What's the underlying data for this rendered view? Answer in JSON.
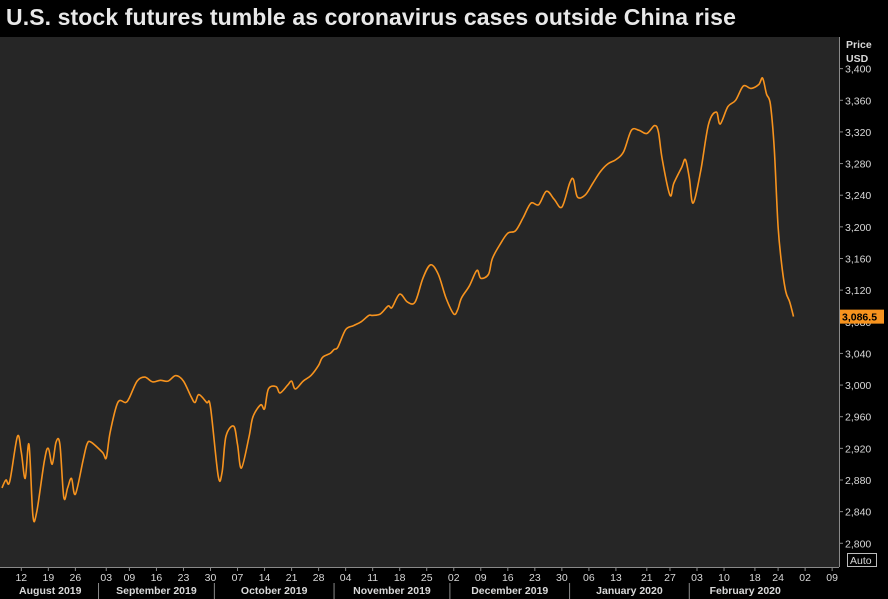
{
  "title": "U.S. stock futures tumble as coronavirus cases outside China rise",
  "colors": {
    "background": "#000000",
    "plot_background": "#262626",
    "line": "#f7931e",
    "last_value_badge": "#f7931e",
    "text": "#d8d8d8"
  },
  "y_axis": {
    "label_line1": "Price",
    "label_line2": "USD",
    "auto_button": "Auto"
  },
  "last_value": {
    "label": "3,086.5",
    "value": 3086.5
  },
  "chart_data": {
    "type": "line",
    "title": "U.S. stock futures tumble as coronavirus cases outside China rise",
    "ylabel": "Price USD",
    "ylim": [
      2770,
      3440
    ],
    "y_ticks": [
      2800,
      2840,
      2880,
      2920,
      2960,
      3000,
      3040,
      3080,
      3120,
      3160,
      3200,
      3240,
      3280,
      3320,
      3360,
      3400
    ],
    "y_tick_labels": [
      "2,800",
      "2,840",
      "2,880",
      "2,920",
      "2,960",
      "3,000",
      "3,040",
      "3,080",
      "3,120",
      "3,160",
      "3,200",
      "3,240",
      "3,280",
      "3,320",
      "3,360",
      "3,400"
    ],
    "x_range": [
      "2019-08-07",
      "2020-03-10"
    ],
    "x_ticks": [
      {
        "date": "2019-08-12",
        "label": "12"
      },
      {
        "date": "2019-08-19",
        "label": "19"
      },
      {
        "date": "2019-08-26",
        "label": "26"
      },
      {
        "date": "2019-09-03",
        "label": "03"
      },
      {
        "date": "2019-09-09",
        "label": "09"
      },
      {
        "date": "2019-09-16",
        "label": "16"
      },
      {
        "date": "2019-09-23",
        "label": "23"
      },
      {
        "date": "2019-09-30",
        "label": "30"
      },
      {
        "date": "2019-10-07",
        "label": "07"
      },
      {
        "date": "2019-10-14",
        "label": "14"
      },
      {
        "date": "2019-10-21",
        "label": "21"
      },
      {
        "date": "2019-10-28",
        "label": "28"
      },
      {
        "date": "2019-11-04",
        "label": "04"
      },
      {
        "date": "2019-11-11",
        "label": "11"
      },
      {
        "date": "2019-11-18",
        "label": "18"
      },
      {
        "date": "2019-11-25",
        "label": "25"
      },
      {
        "date": "2019-12-02",
        "label": "02"
      },
      {
        "date": "2019-12-09",
        "label": "09"
      },
      {
        "date": "2019-12-16",
        "label": "16"
      },
      {
        "date": "2019-12-23",
        "label": "23"
      },
      {
        "date": "2019-12-30",
        "label": "30"
      },
      {
        "date": "2020-01-06",
        "label": "06"
      },
      {
        "date": "2020-01-13",
        "label": "13"
      },
      {
        "date": "2020-01-21",
        "label": "21"
      },
      {
        "date": "2020-01-27",
        "label": "27"
      },
      {
        "date": "2020-02-03",
        "label": "03"
      },
      {
        "date": "2020-02-10",
        "label": "10"
      },
      {
        "date": "2020-02-18",
        "label": "18"
      },
      {
        "date": "2020-02-24",
        "label": "24"
      },
      {
        "date": "2020-03-02",
        "label": "02"
      },
      {
        "date": "2020-03-09",
        "label": "09"
      }
    ],
    "months": [
      {
        "label": "August 2019",
        "start": "2019-08-07",
        "end": "2019-09-01"
      },
      {
        "label": "September 2019",
        "start": "2019-09-01",
        "end": "2019-10-01"
      },
      {
        "label": "October 2019",
        "start": "2019-10-01",
        "end": "2019-11-01"
      },
      {
        "label": "November 2019",
        "start": "2019-11-01",
        "end": "2019-12-01"
      },
      {
        "label": "December 2019",
        "start": "2019-12-01",
        "end": "2020-01-01"
      },
      {
        "label": "January 2020",
        "start": "2020-01-01",
        "end": "2020-02-01"
      },
      {
        "label": "February 2020",
        "start": "2020-02-01",
        "end": "2020-03-01"
      }
    ],
    "series": [
      {
        "points": [
          [
            "2019-08-07",
            2870
          ],
          [
            "2019-08-08",
            2880
          ],
          [
            "2019-08-09",
            2878
          ],
          [
            "2019-08-11",
            2935
          ],
          [
            "2019-08-12",
            2915
          ],
          [
            "2019-08-13",
            2882
          ],
          [
            "2019-08-14",
            2925
          ],
          [
            "2019-08-15",
            2835
          ],
          [
            "2019-08-16",
            2840
          ],
          [
            "2019-08-18",
            2905
          ],
          [
            "2019-08-19",
            2920
          ],
          [
            "2019-08-20",
            2900
          ],
          [
            "2019-08-21",
            2928
          ],
          [
            "2019-08-22",
            2925
          ],
          [
            "2019-08-23",
            2858
          ],
          [
            "2019-08-24",
            2870
          ],
          [
            "2019-08-25",
            2882
          ],
          [
            "2019-08-26",
            2862
          ],
          [
            "2019-08-28",
            2905
          ],
          [
            "2019-08-29",
            2925
          ],
          [
            "2019-08-30",
            2928
          ],
          [
            "2019-09-02",
            2915
          ],
          [
            "2019-09-03",
            2908
          ],
          [
            "2019-09-04",
            2940
          ],
          [
            "2019-09-06",
            2978
          ],
          [
            "2019-09-08",
            2978
          ],
          [
            "2019-09-09",
            2984
          ],
          [
            "2019-09-11",
            3005
          ],
          [
            "2019-09-13",
            3010
          ],
          [
            "2019-09-15",
            3004
          ],
          [
            "2019-09-17",
            3006
          ],
          [
            "2019-09-19",
            3005
          ],
          [
            "2019-09-21",
            3012
          ],
          [
            "2019-09-23",
            3005
          ],
          [
            "2019-09-25",
            2985
          ],
          [
            "2019-09-26",
            2978
          ],
          [
            "2019-09-27",
            2988
          ],
          [
            "2019-09-29",
            2978
          ],
          [
            "2019-09-30",
            2972
          ],
          [
            "2019-10-02",
            2885
          ],
          [
            "2019-10-03",
            2890
          ],
          [
            "2019-10-04",
            2935
          ],
          [
            "2019-10-06",
            2948
          ],
          [
            "2019-10-07",
            2925
          ],
          [
            "2019-10-08",
            2895
          ],
          [
            "2019-10-10",
            2935
          ],
          [
            "2019-10-11",
            2960
          ],
          [
            "2019-10-13",
            2975
          ],
          [
            "2019-10-14",
            2970
          ],
          [
            "2019-10-15",
            2995
          ],
          [
            "2019-10-17",
            2998
          ],
          [
            "2019-10-18",
            2990
          ],
          [
            "2019-10-20",
            3000
          ],
          [
            "2019-10-21",
            3005
          ],
          [
            "2019-10-22",
            2995
          ],
          [
            "2019-10-24",
            3005
          ],
          [
            "2019-10-26",
            3012
          ],
          [
            "2019-10-28",
            3025
          ],
          [
            "2019-10-29",
            3035
          ],
          [
            "2019-10-31",
            3040
          ],
          [
            "2019-11-01",
            3045
          ],
          [
            "2019-11-02",
            3048
          ],
          [
            "2019-11-04",
            3070
          ],
          [
            "2019-11-06",
            3075
          ],
          [
            "2019-11-08",
            3080
          ],
          [
            "2019-11-10",
            3088
          ],
          [
            "2019-11-11",
            3088
          ],
          [
            "2019-11-13",
            3090
          ],
          [
            "2019-11-15",
            3100
          ],
          [
            "2019-11-16",
            3098
          ],
          [
            "2019-11-18",
            3115
          ],
          [
            "2019-11-20",
            3105
          ],
          [
            "2019-11-22",
            3105
          ],
          [
            "2019-11-24",
            3135
          ],
          [
            "2019-11-26",
            3152
          ],
          [
            "2019-11-28",
            3140
          ],
          [
            "2019-11-30",
            3110
          ],
          [
            "2019-12-02",
            3090
          ],
          [
            "2019-12-03",
            3095
          ],
          [
            "2019-12-04",
            3110
          ],
          [
            "2019-12-06",
            3125
          ],
          [
            "2019-12-08",
            3145
          ],
          [
            "2019-12-09",
            3135
          ],
          [
            "2019-12-11",
            3140
          ],
          [
            "2019-12-12",
            3160
          ],
          [
            "2019-12-14",
            3178
          ],
          [
            "2019-12-16",
            3192
          ],
          [
            "2019-12-18",
            3195
          ],
          [
            "2019-12-20",
            3212
          ],
          [
            "2019-12-22",
            3230
          ],
          [
            "2019-12-24",
            3228
          ],
          [
            "2019-12-26",
            3245
          ],
          [
            "2019-12-28",
            3235
          ],
          [
            "2019-12-30",
            3225
          ],
          [
            "2020-01-01",
            3255
          ],
          [
            "2020-01-02",
            3260
          ],
          [
            "2020-01-03",
            3238
          ],
          [
            "2020-01-05",
            3240
          ],
          [
            "2020-01-07",
            3255
          ],
          [
            "2020-01-09",
            3270
          ],
          [
            "2020-01-11",
            3280
          ],
          [
            "2020-01-13",
            3285
          ],
          [
            "2020-01-15",
            3295
          ],
          [
            "2020-01-17",
            3322
          ],
          [
            "2020-01-19",
            3322
          ],
          [
            "2020-01-21",
            3318
          ],
          [
            "2020-01-23",
            3328
          ],
          [
            "2020-01-24",
            3320
          ],
          [
            "2020-01-25",
            3285
          ],
          [
            "2020-01-27",
            3240
          ],
          [
            "2020-01-28",
            3255
          ],
          [
            "2020-01-30",
            3275
          ],
          [
            "2020-01-31",
            3285
          ],
          [
            "2020-02-01",
            3262
          ],
          [
            "2020-02-02",
            3230
          ],
          [
            "2020-02-04",
            3272
          ],
          [
            "2020-02-06",
            3330
          ],
          [
            "2020-02-08",
            3345
          ],
          [
            "2020-02-09",
            3330
          ],
          [
            "2020-02-11",
            3352
          ],
          [
            "2020-02-13",
            3360
          ],
          [
            "2020-02-15",
            3378
          ],
          [
            "2020-02-17",
            3375
          ],
          [
            "2020-02-19",
            3380
          ],
          [
            "2020-02-20",
            3388
          ],
          [
            "2020-02-21",
            3368
          ],
          [
            "2020-02-22",
            3355
          ],
          [
            "2020-02-23",
            3300
          ],
          [
            "2020-02-24",
            3200
          ],
          [
            "2020-02-25",
            3150
          ],
          [
            "2020-02-26",
            3118
          ],
          [
            "2020-02-27",
            3105
          ],
          [
            "2020-02-28",
            3086.5
          ]
        ]
      }
    ]
  }
}
